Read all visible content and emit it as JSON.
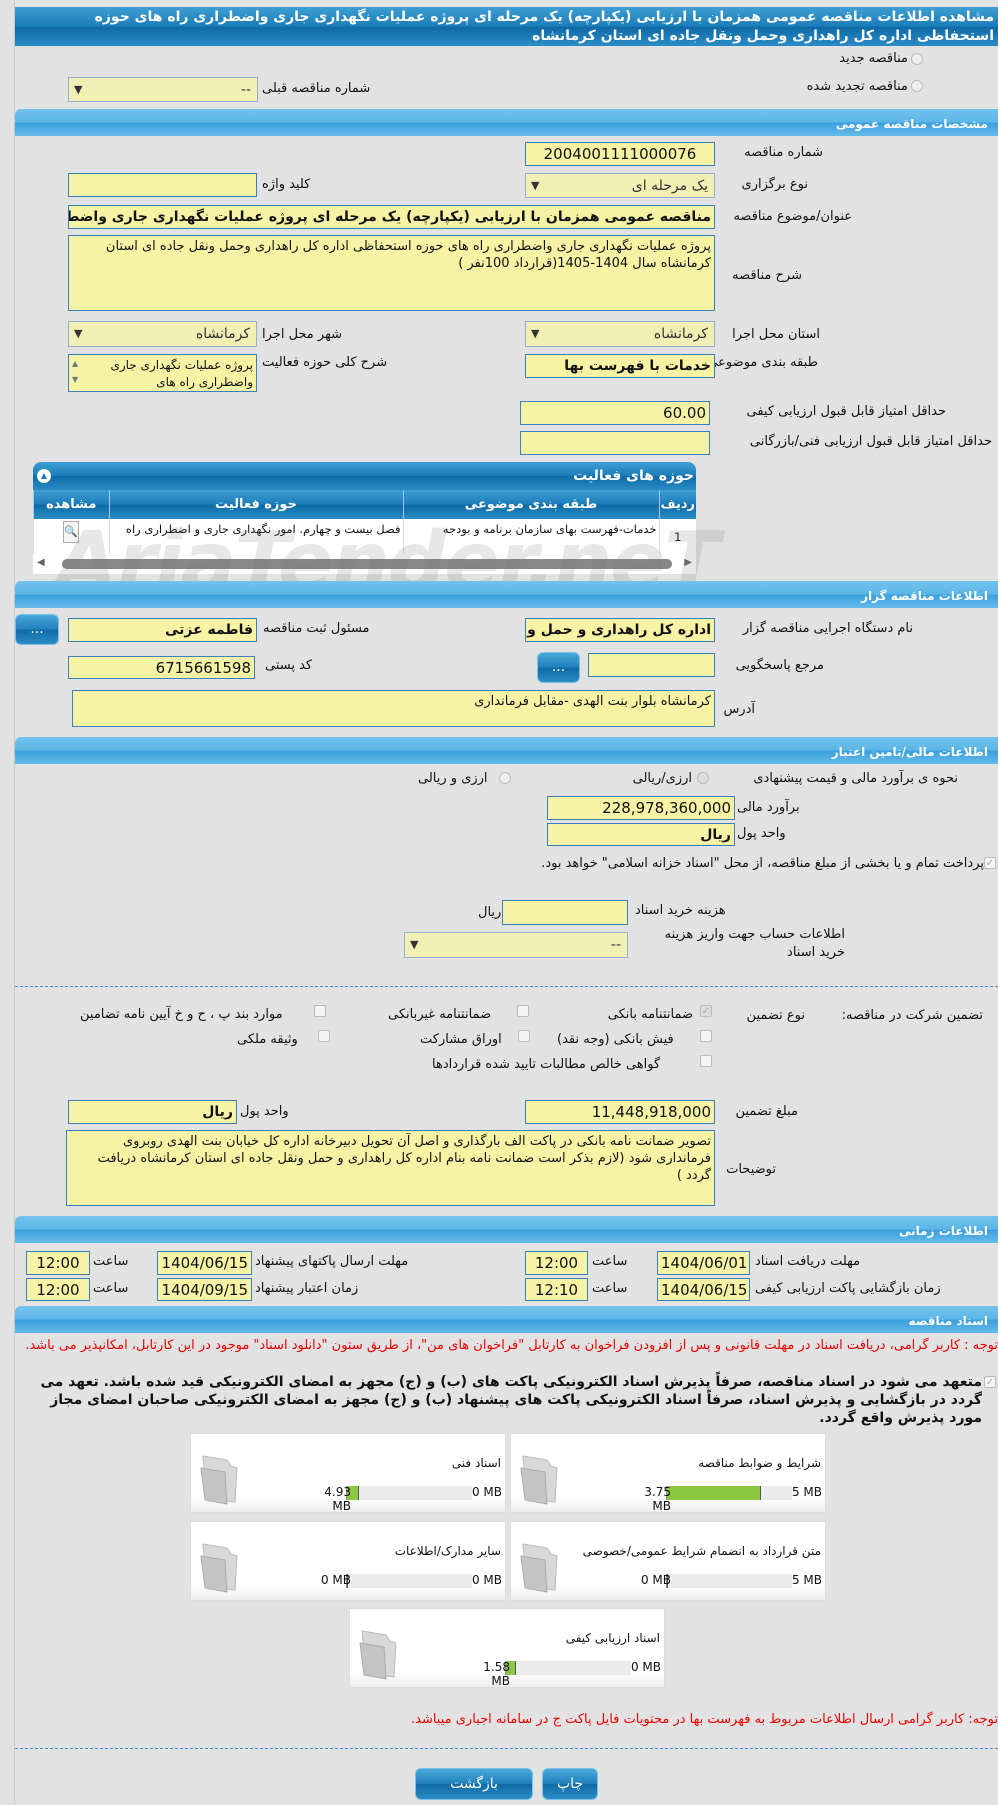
{
  "title": "مشاهده اطلاعات مناقصه عمومی همزمان با ارزیابی (یکپارچه) یک مرحله ای پروژه عملیات نگهداری جاری واضطراری راه های حوزه استحفاظی اداره کل راهداری وحمل ونقل جاده ای استان کرمانشاه",
  "tender_type": {
    "new_label": "مناقصه جدید",
    "renewed_label": "مناقصه تجدید شده",
    "prev_number_label": "شماره مناقصه قبلی",
    "prev_number_value": "--"
  },
  "general": {
    "header": "مشخصات مناقصه عمومی",
    "number_label": "شماره مناقصه",
    "number_value": "2004001111000076",
    "holding_type_label": "نوع برگزاری",
    "holding_type_value": "یک مرحله ای",
    "keyword_label": "کلید واژه",
    "keyword_value": "",
    "subject_label": "عنوان/موضوع مناقصه",
    "subject_value": "مناقصه عمومی همزمان با ارزیابی (یکپارچه) یک مرحله ای پروژه  عملیات نگهداری جاری واضطراری",
    "description_label": "شرح مناقصه",
    "description_value": "پروژه  عملیات نگهداری جاری واضطراری راه های حوزه استحفاظی اداره کل راهداری وحمل ونقل جاده ای استان کرمانشاه سال 1404-1405(قرارداد 100نفر )",
    "province_label": "استان محل اجرا",
    "province_value": "کرمانشاه",
    "city_label": "شهر محل اجرا",
    "city_value": "کرمانشاه",
    "category_label": "طبقه بندی موضوعی",
    "category_value": "خدمات با فهرست بها",
    "activity_desc_label": "شرح کلی حوزه فعالیت",
    "activity_desc_value": "پروژه  عملیات نگهداری جاری واضطراری راه های",
    "min_quality_label": "حداقل امتیاز قابل قبول ارزیابی کیفی",
    "min_quality_value": "60.00",
    "min_tech_label": "حداقل امتیاز قابل قبول ارزیابی فنی/بازرگانی",
    "min_tech_value": ""
  },
  "activities": {
    "header": "حوزه های فعالیت",
    "columns": [
      "ردیف",
      "طبقه بندی موضوعی",
      "حوزه فعالیت",
      "مشاهده"
    ],
    "rows": [
      {
        "index": "1",
        "category": "خدمات-فهرست بهای سازمان برنامه و بودجه",
        "field": "فصل بیست و چهارم. امور نگهداری جاری و اضطراری راه"
      }
    ]
  },
  "organizer": {
    "header": "اطلاعات مناقصه گزار",
    "org_label": "نام دستگاه اجرایی مناقصه گزار",
    "org_value": "اداره کل راهداری و حمل و نقل",
    "responsible_label": "مسئول ثبت مناقصه",
    "responsible_value": "فاطمه  عزتی",
    "reference_label": "مرجع پاسخگویی",
    "reference_value": "",
    "postal_label": "کد پستی",
    "postal_value": "6715661598",
    "address_label": "آدرس",
    "address_value": "کرمانشاه بلوار بنت الهدی -مقابل فرمانداری",
    "browse_label": "..."
  },
  "financial": {
    "header": "اطلاعات مالی/تامین اعتبار",
    "method_label": "نحوه ی برآورد مالی و قیمت پیشنهادی",
    "opt_rial": "ارزی/ریالی",
    "opt_fx": "ارزی و ریالی",
    "estimate_label": "برآورد مالی",
    "estimate_value": "228,978,360,000",
    "currency_label": "واحد پول",
    "currency_value": "ریال",
    "treasury_text": "پرداخت تمام و یا بخشی از مبلغ مناقصه، از محل \"اسناد خزانه اسلامی\" خواهد بود.",
    "doc_cost_label": "هزینه خرید اسناد",
    "doc_cost_value": "",
    "doc_cost_unit": "ریال",
    "account_label": "اطلاعات حساب جهت واریز هزینه خرید اسناد",
    "account_value": "--"
  },
  "guarantee": {
    "label": "تضمین شرکت در مناقصه:",
    "type_label": "نوع تضمین",
    "options": [
      {
        "label": "ضمانتنامه بانکی",
        "checked": true
      },
      {
        "label": "ضمانتنامه غیربانکی",
        "checked": false
      },
      {
        "label": "موارد بند پ ، ح و خ آیین نامه تضامین",
        "checked": false
      },
      {
        "label": "فیش بانکی (وجه نقد)",
        "checked": false
      },
      {
        "label": "اوراق مشارکت",
        "checked": false
      },
      {
        "label": "وثیقه ملکی",
        "checked": false
      },
      {
        "label": "گواهی خالص مطالبات تایید شده قراردادها",
        "checked": false
      }
    ],
    "amount_label": "مبلغ تضمین",
    "amount_value": "11,448,918,000",
    "currency_label": "واحد پول",
    "currency_value": "ریال",
    "notes_label": "توضیحات",
    "notes_value": "تصویر ضمانت نامه بانکی در پاکت الف بارگذاری و اصل آن تحویل دبیرخانه اداره کل خیابان بنت الهدی روبروی فرمانداری شود  (لازم بذکر است ضمانت نامه بنام اداره کل راهداری و حمل ونقل جاده ای استان کرمانشاه دریافت گردد )"
  },
  "timing": {
    "header": "اطلاعات زمانی",
    "time_label": "ساعت",
    "doc_deadline_label": "مهلت دریافت اسناد",
    "doc_deadline_date": "1404/06/01",
    "doc_deadline_time": "12:00",
    "submit_label": "مهلت ارسال پاکتهای پیشنهاد",
    "submit_date": "1404/06/15",
    "submit_time": "12:00",
    "opening_label": "زمان بازگشایی پاکت ارزیابی کیفی",
    "opening_date": "1404/06/15",
    "opening_time": "12:10",
    "validity_label": "زمان اعتبار پیشنهاد",
    "validity_date": "1404/09/15",
    "validity_time": "12:00"
  },
  "documents": {
    "header": "اسناد مناقصه",
    "notice": "توجه : کاربر گرامی، دریافت اسناد در مهلت قانونی و پس از افزودن فراخوان به کارتابل \"فراخوان های من\"، از طریق ستون \"دانلود اسناد\" موجود در این کارتابل، امکانپذیر می باشد.",
    "commitment": "متعهد می شود در اسناد مناقصه، صرفاً پذیرش اسناد الکترونیکی پاکت های (ب) و (ج) مجهز به امضای الکترونیکی قید شده باشد. تعهد می گردد در بازگشایی و پذیرش اسناد، صرفاً اسناد الکترونیکی پاکت های پیشنهاد (ب) و (ج) مجهز به امضای الکترونیکی صاحبان امضای مجاز مورد پذیرش واقع گردد.",
    "items": [
      {
        "name": "شرایط و ضوابط مناقصه",
        "used": "3.75 MB",
        "max": "5 MB",
        "fraction": 0.75
      },
      {
        "name": "اسناد فنی",
        "used": "4.93 MB",
        "max": "50 MB",
        "fraction": 0.0986
      },
      {
        "name": "متن قرارداد به انضمام شرایط عمومی/خصوصی",
        "used": "0 MB",
        "max": "5 MB",
        "fraction": 0
      },
      {
        "name": "سایر مدارک/اطلاعات",
        "used": "0 MB",
        "max": "50 MB",
        "fraction": 0
      },
      {
        "name": "اسناد ارزیابی کیفی",
        "used": "1.58 MB",
        "max": "20 MB",
        "fraction": 0.079
      }
    ],
    "notice2": "توجه: کاربر گرامی ارسال اطلاعات مربوط به فهرست بها در محتویات فایل پاکت ج در سامانه اجباری میباشد."
  },
  "buttons": {
    "back": "بازگشت",
    "print": "چاپ"
  },
  "watermark": "AriaTender.neT"
}
